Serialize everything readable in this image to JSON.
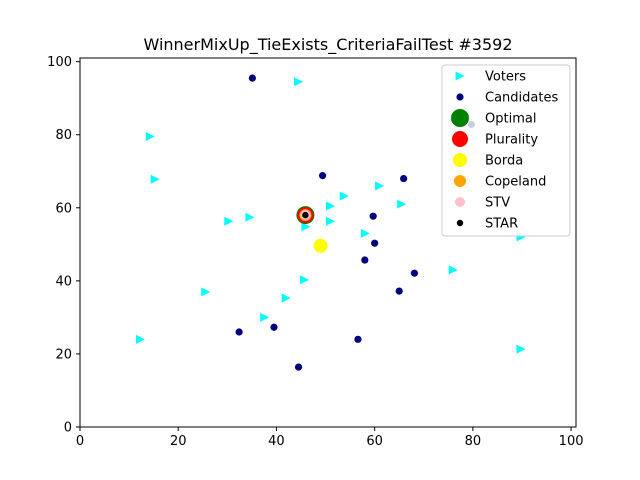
{
  "chart_data": {
    "type": "scatter",
    "title": "WinnerMixUp_TieExists_CriteriaFailTest #3592",
    "xlabel": "",
    "ylabel": "",
    "xlim": [
      0,
      101
    ],
    "ylim": [
      0,
      101
    ],
    "xticks": [
      "0",
      "20",
      "40",
      "60",
      "80",
      "100"
    ],
    "yticks": [
      "0",
      "20",
      "40",
      "60",
      "80",
      "100"
    ],
    "grid": false,
    "legend_position": "top-right",
    "series": [
      {
        "name": "Voters",
        "marker": "triangle-right",
        "color": "#00ffff",
        "points": [
          [
            44.5,
            94.5
          ],
          [
            14.3,
            79.5
          ],
          [
            15.3,
            67.8
          ],
          [
            30.3,
            56.3
          ],
          [
            34.6,
            57.4
          ],
          [
            46.0,
            54.8
          ],
          [
            51.0,
            60.5
          ],
          [
            51.0,
            56.3
          ],
          [
            53.8,
            63.2
          ],
          [
            58.1,
            53.0
          ],
          [
            61.0,
            66.0
          ],
          [
            65.5,
            61.0
          ],
          [
            89.8,
            52.0
          ],
          [
            76.0,
            43.0
          ],
          [
            45.7,
            40.3
          ],
          [
            42.0,
            35.3
          ],
          [
            25.6,
            37.0
          ],
          [
            37.6,
            30.0
          ],
          [
            12.3,
            24.0
          ],
          [
            89.8,
            21.3
          ]
        ]
      },
      {
        "name": "Candidates",
        "marker": "circle",
        "color": "#00007f",
        "points": [
          [
            35.1,
            95.5
          ],
          [
            49.4,
            68.8
          ],
          [
            65.9,
            68.0
          ],
          [
            59.7,
            57.7
          ],
          [
            60.0,
            50.3
          ],
          [
            58.0,
            45.7
          ],
          [
            68.1,
            42.1
          ],
          [
            65.0,
            37.2
          ],
          [
            79.7,
            82.8
          ],
          [
            32.4,
            26.0
          ],
          [
            39.5,
            27.3
          ],
          [
            56.6,
            24.0
          ],
          [
            44.5,
            16.4
          ]
        ]
      },
      {
        "name": "Optimal",
        "marker": "circle",
        "color": "#008000",
        "points": [
          [
            45.9,
            58.0
          ]
        ]
      },
      {
        "name": "Plurality",
        "marker": "circle",
        "color": "#ff0000",
        "points": [
          [
            45.9,
            58.0
          ]
        ]
      },
      {
        "name": "Borda",
        "marker": "circle",
        "color": "#ffff00",
        "points": [
          [
            49.0,
            49.6
          ]
        ]
      },
      {
        "name": "Copeland",
        "marker": "circle",
        "color": "#ffa500",
        "points": [
          [
            45.9,
            58.0
          ]
        ]
      },
      {
        "name": "STV",
        "marker": "circle",
        "color": "#ffc0cb",
        "points": [
          [
            45.9,
            58.0
          ]
        ]
      },
      {
        "name": "STAR",
        "marker": "circle",
        "color": "#000000",
        "points": [
          [
            45.9,
            58.0
          ]
        ]
      }
    ]
  }
}
